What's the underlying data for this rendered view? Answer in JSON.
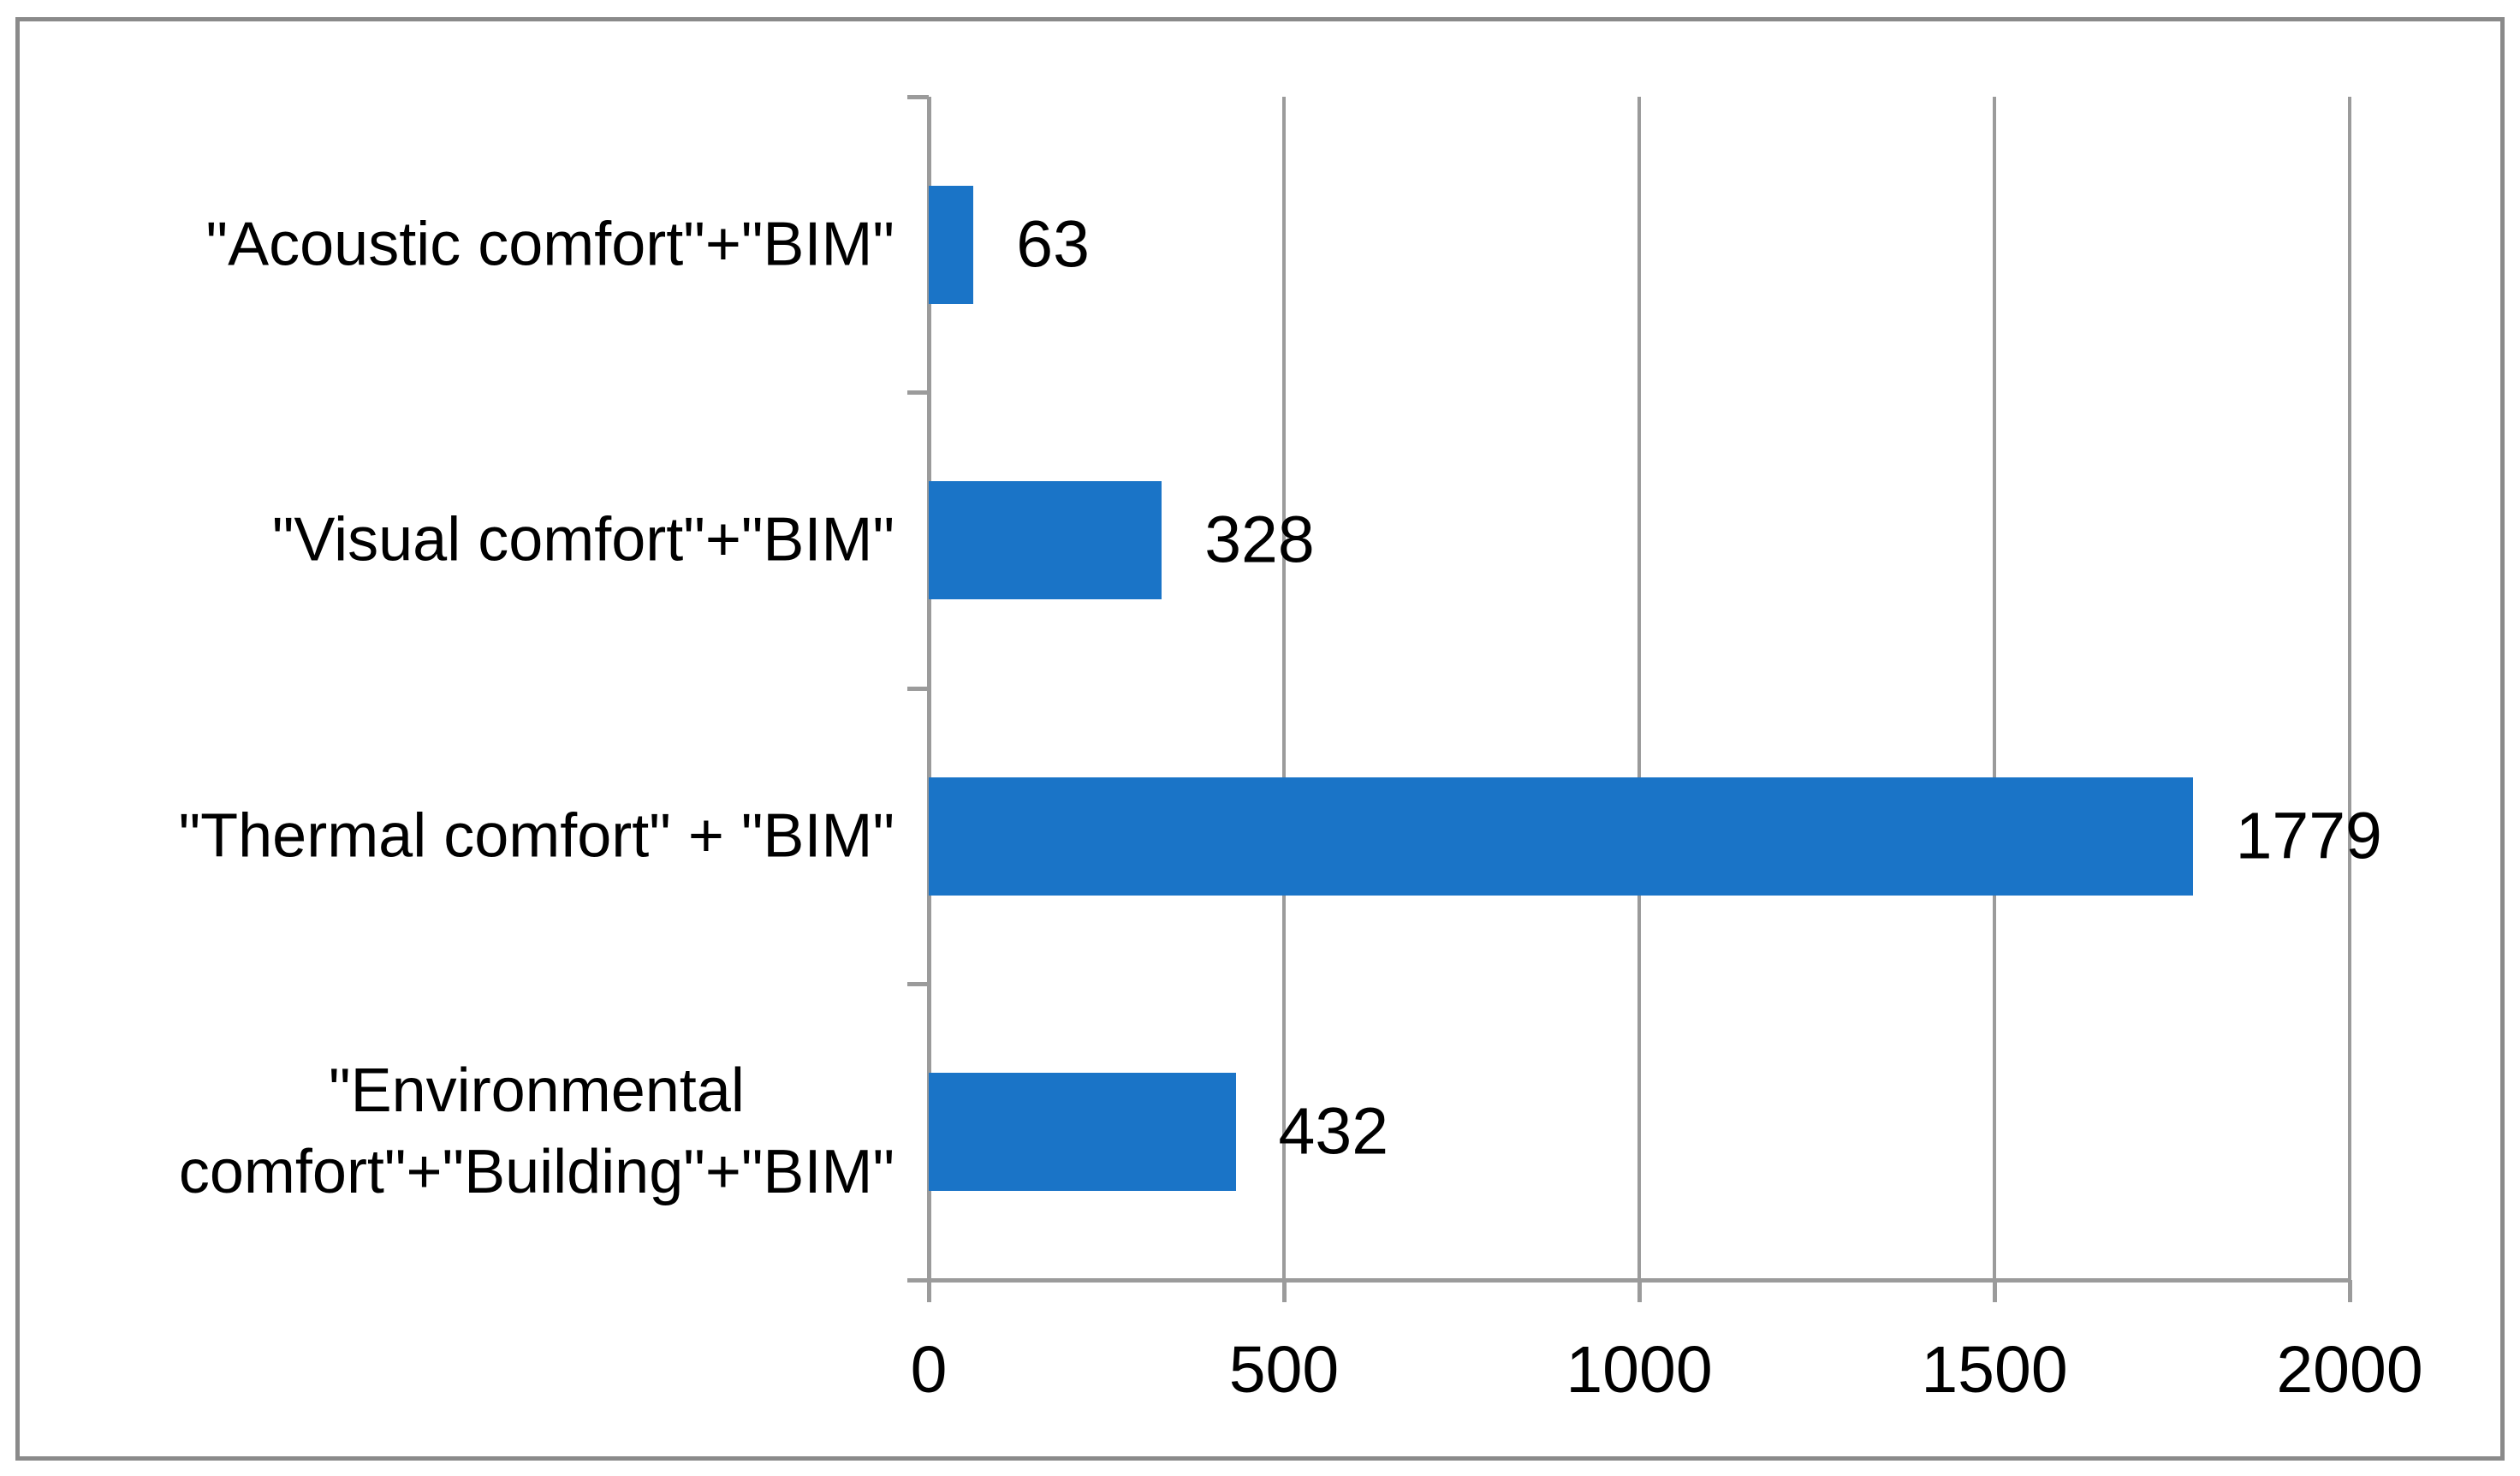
{
  "figure": {
    "background": "#ffffff",
    "border_color": "#8a8a8a"
  },
  "chart_data": {
    "type": "bar",
    "orientation": "horizontal",
    "title": "",
    "xlabel": "",
    "ylabel": "",
    "legend": "none",
    "grid": "vertical",
    "categories": [
      "\"Acoustic comfort\"+\"BIM\"",
      "\"Visual comfort\"+\"BIM\"",
      "\"Thermal comfort\" + \"BIM\"",
      "\"Environmental comfort\"+\"Building\"+\"BIM\""
    ],
    "display_labels": [
      "\"Acoustic comfort\"+\"BIM\"",
      "\"Visual comfort\"+\"BIM\"",
      "\"Thermal comfort\" + \"BIM\"",
      "\"Environmental\ncomfort\"+\"Building\"+\"BIM\""
    ],
    "values": [
      63,
      328,
      1779,
      432
    ],
    "data_labels": [
      "63",
      "328",
      "1779",
      "432"
    ],
    "xlim": [
      0,
      2000
    ],
    "x_ticks": [
      0,
      500,
      1000,
      1500,
      2000
    ],
    "x_tick_labels": [
      "0",
      "500",
      "1000",
      "1500",
      "2000"
    ],
    "bar_color": "#1a74c7",
    "axis_color": "#9b9b9b",
    "gridline_color": "#9b9b9b",
    "text_color": "#000000"
  }
}
